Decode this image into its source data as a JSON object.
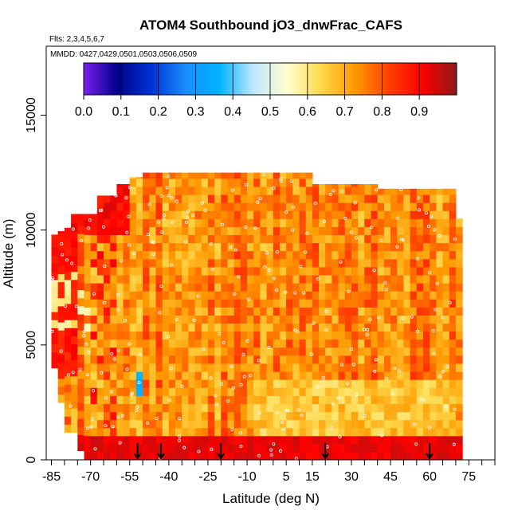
{
  "chart_data": {
    "type": "heatmap",
    "title": "ATOM4 Southbound jO3_dnwFrac_CAFS",
    "flights_label": "Flts: 2,3,4,5,6,7",
    "dates_label": "MMDD: 0427,0429,0501,0503,0506,0509",
    "xlabel": "Latitude (deg N)",
    "ylabel": "Altitude (m)",
    "xlim": [
      -87,
      85
    ],
    "ylim": [
      0,
      18000
    ],
    "x_ticks": [
      -85,
      -70,
      -55,
      -40,
      -25,
      -10,
      5,
      15,
      30,
      45,
      60,
      75
    ],
    "x_minor_ticks": [
      -80,
      -75,
      -65,
      -60,
      -50,
      -45,
      -35,
      -30,
      -20,
      -15,
      -5,
      0,
      10,
      20,
      25,
      35,
      40,
      50,
      55,
      65,
      70,
      80,
      85
    ],
    "y_ticks": [
      0,
      5000,
      10000,
      15000
    ],
    "colorbar": {
      "min": 0.0,
      "max": 1.0,
      "tick_labels": [
        "0.0",
        "0.1",
        "0.2",
        "0.3",
        "0.4",
        "0.5",
        "0.6",
        "0.7",
        "0.8",
        "0.9"
      ],
      "tick_values": [
        0.0,
        0.1,
        0.2,
        0.3,
        0.4,
        0.5,
        0.6,
        0.7,
        0.8,
        0.9
      ],
      "color_stops": [
        "#7a20f0",
        "#00008c",
        "#0033d6",
        "#1a8cff",
        "#00b4ff",
        "#bfe6ff",
        "#ffffd0",
        "#ffd84a",
        "#ff9900",
        "#ff4000",
        "#ff0000",
        "#8b1a1a"
      ]
    },
    "arrow_latitudes": [
      -52,
      -43,
      -20,
      20,
      60
    ],
    "data_extent": {
      "lat_range": [
        -85,
        72
      ],
      "alt_range": [
        0,
        12500
      ]
    },
    "typical_value_range": [
      0.6,
      0.95
    ]
  }
}
